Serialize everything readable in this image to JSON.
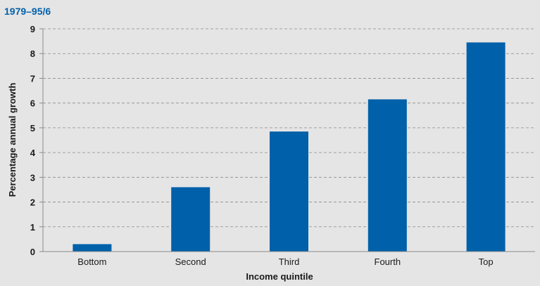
{
  "chart_data": {
    "type": "bar",
    "subtitle": "1979–95/6",
    "xlabel": "Income quintile",
    "ylabel": "Percentage annual growth",
    "categories": [
      "Bottom",
      "Second",
      "Third",
      "Fourth",
      "Top"
    ],
    "values": [
      0.3,
      2.6,
      4.85,
      6.15,
      8.45
    ],
    "yticks": [
      "0",
      "1",
      "2",
      "3",
      "4",
      "5",
      "6",
      "7",
      "8",
      "9"
    ],
    "ylim": [
      0,
      9
    ],
    "grid": true,
    "legend": "none"
  },
  "colors": {
    "background": "#e5e5e6",
    "bar": "#0060a9",
    "accent": "#0060a9",
    "grid": "#8c8c8c",
    "axis": "#8c8c8c",
    "text": "#1a1a1a"
  }
}
